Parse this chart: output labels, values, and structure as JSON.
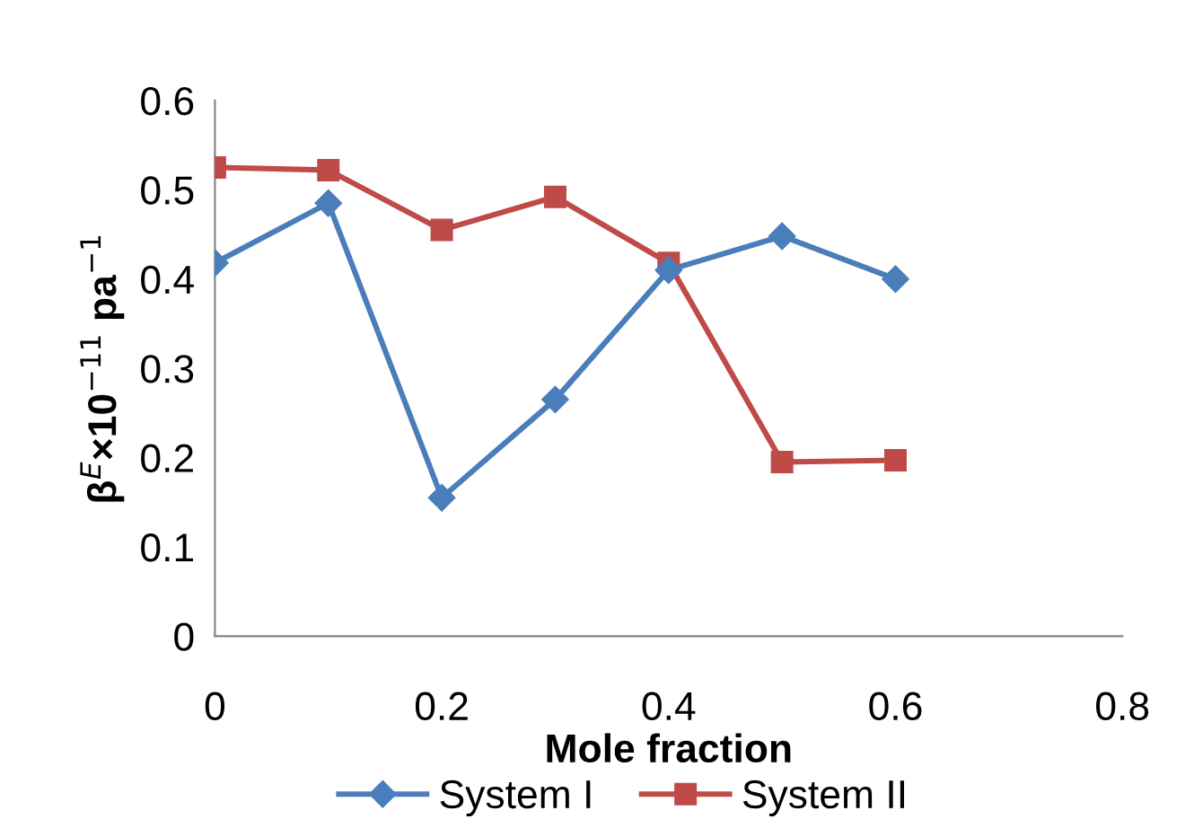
{
  "chart_data": {
    "type": "line",
    "xlabel": "Mole fraction",
    "ylabel": "β$^{E}$×10$^{−11}$ pa$^{−1}$",
    "x": [
      0,
      0.1,
      0.2,
      0.3,
      0.4,
      0.5,
      0.6
    ],
    "series": [
      {
        "name": "System I",
        "color": "#4a7ebb",
        "marker": "diamond",
        "values": [
          0.418,
          0.485,
          0.155,
          0.265,
          0.41,
          0.448,
          0.4
        ]
      },
      {
        "name": "System II",
        "color": "#be4b48",
        "marker": "square",
        "values": [
          0.525,
          0.522,
          0.455,
          0.492,
          0.418,
          0.195,
          0.197
        ]
      }
    ],
    "xlim": [
      0,
      0.8
    ],
    "xticks": [
      0,
      0.2,
      0.4,
      0.6,
      0.8
    ],
    "ylim": [
      0,
      0.6
    ],
    "yticks": [
      0,
      0.1,
      0.2,
      0.3,
      0.4,
      0.5,
      0.6
    ],
    "grid": false,
    "legend": "bottom",
    "line_style": "solid"
  }
}
